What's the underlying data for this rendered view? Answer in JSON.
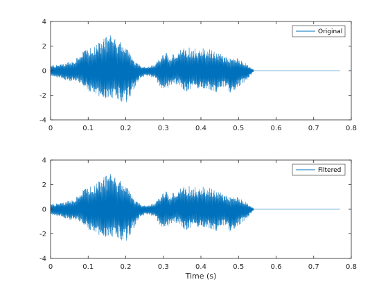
{
  "chart_data": [
    {
      "type": "line",
      "title": "",
      "xlabel": "",
      "ylabel": "",
      "xlim": [
        0,
        0.8
      ],
      "ylim": [
        -4,
        4
      ],
      "xticks": [
        0,
        0.1,
        0.2,
        0.3,
        0.4,
        0.5,
        0.6,
        0.7,
        0.8
      ],
      "xtick_labels": [
        "0",
        "0.1",
        "0.2",
        "0.3",
        "0.4",
        "0.5",
        "0.6",
        "0.7",
        "0.8"
      ],
      "yticks": [
        -4,
        -2,
        0,
        2,
        4
      ],
      "ytick_labels": [
        "-4",
        "-2",
        "0",
        "2",
        "4"
      ],
      "grid": false,
      "legend_position": "top-right",
      "series": [
        {
          "name": "Original",
          "color": "#0072BD",
          "x": [
            0,
            0.02,
            0.04,
            0.06,
            0.08,
            0.1,
            0.12,
            0.14,
            0.16,
            0.18,
            0.2,
            0.22,
            0.24,
            0.26,
            0.28,
            0.3,
            0.32,
            0.34,
            0.36,
            0.38,
            0.4,
            0.42,
            0.44,
            0.46,
            0.48,
            0.5,
            0.52,
            0.54,
            0.77
          ],
          "upper": [
            0.4,
            0.5,
            0.6,
            0.8,
            1.6,
            1.8,
            2.1,
            2.6,
            3.0,
            2.4,
            2.1,
            0.9,
            0.4,
            0.3,
            0.6,
            1.6,
            1.2,
            1.7,
            2.0,
            1.8,
            1.9,
            1.8,
            1.7,
            1.2,
            1.0,
            1.0,
            0.6,
            0.1,
            0
          ],
          "lower": [
            -0.5,
            -0.6,
            -0.8,
            -0.9,
            -1.0,
            -1.7,
            -2.0,
            -2.3,
            -2.2,
            -2.3,
            -2.8,
            -1.6,
            -0.6,
            -0.4,
            -0.8,
            -1.7,
            -1.2,
            -1.1,
            -1.8,
            -1.4,
            -1.6,
            -1.5,
            -1.8,
            -1.3,
            -2.1,
            -1.3,
            -0.9,
            -0.1,
            0
          ]
        }
      ]
    },
    {
      "type": "line",
      "title": "",
      "xlabel": "Time (s)",
      "ylabel": "",
      "xlim": [
        0,
        0.8
      ],
      "ylim": [
        -4,
        4
      ],
      "xticks": [
        0,
        0.1,
        0.2,
        0.3,
        0.4,
        0.5,
        0.6,
        0.7,
        0.8
      ],
      "xtick_labels": [
        "0",
        "0.1",
        "0.2",
        "0.3",
        "0.4",
        "0.5",
        "0.6",
        "0.7",
        "0.8"
      ],
      "yticks": [
        -4,
        -2,
        0,
        2,
        4
      ],
      "ytick_labels": [
        "-4",
        "-2",
        "0",
        "2",
        "4"
      ],
      "grid": false,
      "legend_position": "top-right",
      "series": [
        {
          "name": "Filtered",
          "color": "#0072BD",
          "x": [
            0,
            0.02,
            0.04,
            0.06,
            0.08,
            0.1,
            0.12,
            0.14,
            0.16,
            0.18,
            0.2,
            0.22,
            0.24,
            0.26,
            0.28,
            0.3,
            0.32,
            0.34,
            0.36,
            0.38,
            0.4,
            0.42,
            0.44,
            0.46,
            0.48,
            0.5,
            0.52,
            0.54,
            0.77
          ],
          "upper": [
            0.4,
            0.5,
            0.6,
            0.8,
            1.6,
            1.8,
            2.1,
            2.6,
            3.0,
            2.4,
            2.1,
            0.9,
            0.4,
            0.3,
            0.6,
            1.6,
            1.2,
            1.7,
            2.0,
            1.8,
            1.9,
            1.8,
            1.7,
            1.2,
            1.0,
            1.0,
            0.6,
            0.1,
            0
          ],
          "lower": [
            -0.5,
            -0.6,
            -0.8,
            -0.9,
            -1.0,
            -1.7,
            -2.0,
            -2.3,
            -2.2,
            -2.3,
            -2.8,
            -1.6,
            -0.6,
            -0.4,
            -0.8,
            -1.7,
            -1.2,
            -1.1,
            -1.8,
            -1.4,
            -1.6,
            -1.5,
            -1.8,
            -1.3,
            -2.1,
            -1.3,
            -0.9,
            -0.1,
            0
          ]
        }
      ]
    }
  ]
}
